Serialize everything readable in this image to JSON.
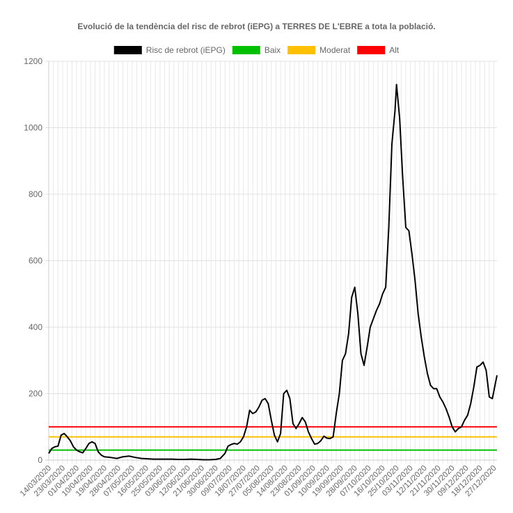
{
  "chart_data": {
    "type": "line",
    "title": "Evolució de la tendència del risc de rebrot (iEPG) a TERRES DE L'EBRE a tota la població.",
    "xlabel": "",
    "ylabel": "",
    "ylim": [
      0,
      1200
    ],
    "y_ticks": [
      0,
      200,
      400,
      600,
      800,
      1000,
      1200
    ],
    "x_tick_labels": [
      "14/03/2020",
      "23/03/2020",
      "01/04/2020",
      "10/04/2020",
      "19/04/2020",
      "28/04/2020",
      "07/05/2020",
      "16/05/2020",
      "25/05/2020",
      "03/06/2020",
      "12/06/2020",
      "21/06/2020",
      "30/06/2020",
      "09/07/2020",
      "18/07/2020",
      "27/07/2020",
      "05/08/2020",
      "14/08/2020",
      "23/08/2020",
      "01/09/2020",
      "10/09/2020",
      "19/09/2020",
      "28/09/2020",
      "07/10/2020",
      "16/10/2020",
      "25/10/2020",
      "03/11/2020",
      "12/11/2020",
      "21/11/2020",
      "30/11/2020",
      "09/12/2020",
      "18/12/2020",
      "27/12/2020"
    ],
    "grid": true,
    "legend_position": "top",
    "series": [
      {
        "name": "Risc de rebrot (iEPG)",
        "color": "#000000",
        "points": [
          [
            "14/03/2020",
            20
          ],
          [
            "16/03/2020",
            35
          ],
          [
            "18/03/2020",
            40
          ],
          [
            "20/03/2020",
            42
          ],
          [
            "22/03/2020",
            75
          ],
          [
            "24/03/2020",
            80
          ],
          [
            "26/03/2020",
            70
          ],
          [
            "28/03/2020",
            58
          ],
          [
            "30/03/2020",
            40
          ],
          [
            "01/04/2020",
            30
          ],
          [
            "03/04/2020",
            25
          ],
          [
            "05/04/2020",
            22
          ],
          [
            "07/04/2020",
            35
          ],
          [
            "09/04/2020",
            50
          ],
          [
            "11/04/2020",
            55
          ],
          [
            "13/04/2020",
            50
          ],
          [
            "15/04/2020",
            25
          ],
          [
            "17/04/2020",
            15
          ],
          [
            "19/04/2020",
            10
          ],
          [
            "23/04/2020",
            8
          ],
          [
            "27/04/2020",
            5
          ],
          [
            "01/05/2020",
            10
          ],
          [
            "05/05/2020",
            12
          ],
          [
            "09/05/2020",
            8
          ],
          [
            "13/05/2020",
            5
          ],
          [
            "17/05/2020",
            4
          ],
          [
            "21/05/2020",
            3
          ],
          [
            "25/05/2020",
            3
          ],
          [
            "29/05/2020",
            3
          ],
          [
            "02/06/2020",
            3
          ],
          [
            "06/06/2020",
            2
          ],
          [
            "10/06/2020",
            2
          ],
          [
            "14/06/2020",
            3
          ],
          [
            "18/06/2020",
            2
          ],
          [
            "22/06/2020",
            1
          ],
          [
            "26/06/2020",
            1
          ],
          [
            "30/06/2020",
            2
          ],
          [
            "03/07/2020",
            5
          ],
          [
            "06/07/2020",
            20
          ],
          [
            "08/07/2020",
            42
          ],
          [
            "10/07/2020",
            47
          ],
          [
            "12/07/2020",
            50
          ],
          [
            "14/07/2020",
            48
          ],
          [
            "16/07/2020",
            55
          ],
          [
            "18/07/2020",
            70
          ],
          [
            "20/07/2020",
            100
          ],
          [
            "22/07/2020",
            150
          ],
          [
            "24/07/2020",
            140
          ],
          [
            "26/07/2020",
            145
          ],
          [
            "28/07/2020",
            160
          ],
          [
            "30/07/2020",
            180
          ],
          [
            "01/08/2020",
            185
          ],
          [
            "03/08/2020",
            170
          ],
          [
            "05/08/2020",
            120
          ],
          [
            "07/08/2020",
            75
          ],
          [
            "09/08/2020",
            55
          ],
          [
            "11/08/2020",
            80
          ],
          [
            "13/08/2020",
            200
          ],
          [
            "15/08/2020",
            210
          ],
          [
            "17/08/2020",
            185
          ],
          [
            "19/08/2020",
            110
          ],
          [
            "21/08/2020",
            95
          ],
          [
            "23/08/2020",
            110
          ],
          [
            "25/08/2020",
            128
          ],
          [
            "27/08/2020",
            115
          ],
          [
            "29/08/2020",
            85
          ],
          [
            "31/08/2020",
            65
          ],
          [
            "02/09/2020",
            48
          ],
          [
            "04/09/2020",
            50
          ],
          [
            "06/09/2020",
            58
          ],
          [
            "08/09/2020",
            72
          ],
          [
            "10/09/2020",
            66
          ],
          [
            "12/09/2020",
            65
          ],
          [
            "14/09/2020",
            70
          ],
          [
            "16/09/2020",
            140
          ],
          [
            "18/09/2020",
            200
          ],
          [
            "20/09/2020",
            300
          ],
          [
            "22/09/2020",
            320
          ],
          [
            "24/09/2020",
            380
          ],
          [
            "26/09/2020",
            490
          ],
          [
            "28/09/2020",
            520
          ],
          [
            "30/09/2020",
            440
          ],
          [
            "02/10/2020",
            320
          ],
          [
            "04/10/2020",
            285
          ],
          [
            "06/10/2020",
            340
          ],
          [
            "08/10/2020",
            400
          ],
          [
            "10/10/2020",
            425
          ],
          [
            "12/10/2020",
            450
          ],
          [
            "14/10/2020",
            470
          ],
          [
            "16/10/2020",
            500
          ],
          [
            "18/10/2020",
            520
          ],
          [
            "20/10/2020",
            700
          ],
          [
            "22/10/2020",
            950
          ],
          [
            "24/10/2020",
            1050
          ],
          [
            "25/10/2020",
            1130
          ],
          [
            "27/10/2020",
            1030
          ],
          [
            "29/10/2020",
            850
          ],
          [
            "31/10/2020",
            700
          ],
          [
            "02/11/2020",
            690
          ],
          [
            "04/11/2020",
            620
          ],
          [
            "06/11/2020",
            540
          ],
          [
            "08/11/2020",
            440
          ],
          [
            "10/11/2020",
            370
          ],
          [
            "12/11/2020",
            310
          ],
          [
            "14/11/2020",
            260
          ],
          [
            "16/11/2020",
            225
          ],
          [
            "18/11/2020",
            215
          ],
          [
            "20/11/2020",
            215
          ],
          [
            "22/11/2020",
            190
          ],
          [
            "24/11/2020",
            175
          ],
          [
            "26/11/2020",
            155
          ],
          [
            "28/11/2020",
            130
          ],
          [
            "30/11/2020",
            100
          ],
          [
            "02/12/2020",
            85
          ],
          [
            "04/12/2020",
            95
          ],
          [
            "06/12/2020",
            100
          ],
          [
            "08/12/2020",
            120
          ],
          [
            "10/12/2020",
            135
          ],
          [
            "12/12/2020",
            170
          ],
          [
            "14/12/2020",
            220
          ],
          [
            "16/12/2020",
            280
          ],
          [
            "18/12/2020",
            285
          ],
          [
            "20/12/2020",
            295
          ],
          [
            "22/12/2020",
            270
          ],
          [
            "24/12/2020",
            190
          ],
          [
            "26/12/2020",
            185
          ],
          [
            "29/12/2020",
            255
          ]
        ]
      },
      {
        "name": "Baix",
        "color": "#00c000",
        "points": [
          [
            "14/03/2020",
            30
          ],
          [
            "29/12/2020",
            30
          ]
        ]
      },
      {
        "name": "Moderat",
        "color": "#ffc000",
        "points": [
          [
            "14/03/2020",
            70
          ],
          [
            "29/12/2020",
            70
          ]
        ]
      },
      {
        "name": "Alt",
        "color": "#ff0000",
        "points": [
          [
            "14/03/2020",
            100
          ],
          [
            "29/12/2020",
            100
          ]
        ]
      }
    ]
  }
}
